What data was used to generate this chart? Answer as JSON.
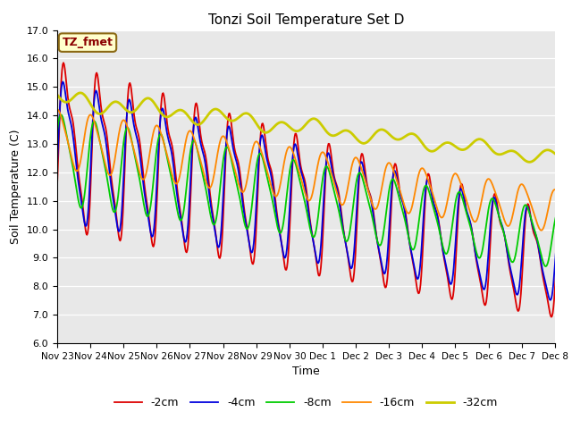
{
  "title": "Tonzi Soil Temperature Set D",
  "xlabel": "Time",
  "ylabel": "Soil Temperature (C)",
  "ylim": [
    6.0,
    17.0
  ],
  "yticks": [
    6.0,
    7.0,
    8.0,
    9.0,
    10.0,
    11.0,
    12.0,
    13.0,
    14.0,
    15.0,
    16.0,
    17.0
  ],
  "label_box_text": "TZ_fmet",
  "plot_bg_color": "#e8e8e8",
  "fig_bg_color": "#ffffff",
  "legend_entries": [
    "-2cm",
    "-4cm",
    "-8cm",
    "-16cm",
    "-32cm"
  ],
  "line_colors": [
    "#dd0000",
    "#0000dd",
    "#00cc00",
    "#ff8800",
    "#cccc00"
  ],
  "line_widths": [
    1.3,
    1.3,
    1.3,
    1.3,
    2.0
  ],
  "x_dates": [
    "Nov 23",
    "Nov 24",
    "Nov 25",
    "Nov 26",
    "Nov 27",
    "Nov 28",
    "Nov 29",
    "Nov 30",
    "Dec 1",
    "Dec 2",
    "Dec 3",
    "Dec 4",
    "Dec 5",
    "Dec 6",
    "Dec 7",
    "Dec 8"
  ],
  "figsize": [
    6.4,
    4.8
  ],
  "dpi": 100
}
